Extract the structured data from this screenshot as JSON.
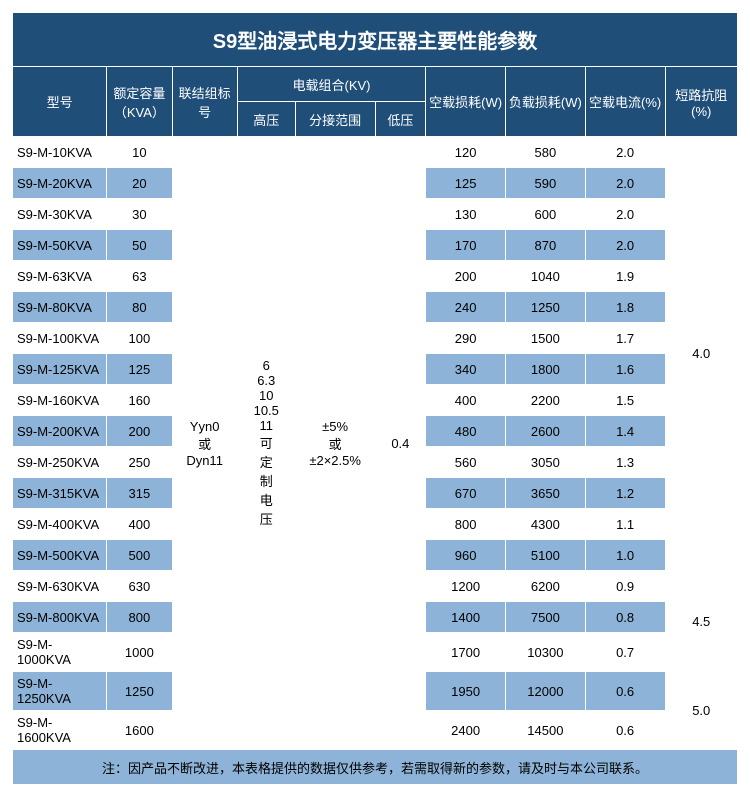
{
  "title": "S9型油浸式电力变压器主要性能参数",
  "headers": {
    "model": "型号",
    "capacity": "额定容量（KVA）",
    "connection": "联结组标号",
    "voltage_group": "电载组合(KV)",
    "hv": "高压",
    "tap": "分接范围",
    "lv": "低压",
    "noload_loss": "空载损耗(W)",
    "load_loss": "负载损耗(W)",
    "noload_current": "空载电流(%)",
    "impedance": "短路抗阻(%)"
  },
  "connection_value": "Yyn0\n或\nDyn11",
  "hv_value": "6\n6.3\n10\n10.5\n11\n可\n定\n制\n电\n压",
  "tap_value": "±5%\n或\n±2×2.5%",
  "lv_value": "0.4",
  "impedance_values": {
    "a": "4.0",
    "b": "4.5",
    "c": "5.0"
  },
  "rows": [
    {
      "model": "S9-M-10KVA",
      "cap": "10",
      "nl": "120",
      "ll": "580",
      "nc": "2.0"
    },
    {
      "model": "S9-M-20KVA",
      "cap": "20",
      "nl": "125",
      "ll": "590",
      "nc": "2.0"
    },
    {
      "model": "S9-M-30KVA",
      "cap": "30",
      "nl": "130",
      "ll": "600",
      "nc": "2.0"
    },
    {
      "model": "S9-M-50KVA",
      "cap": "50",
      "nl": "170",
      "ll": "870",
      "nc": "2.0"
    },
    {
      "model": "S9-M-63KVA",
      "cap": "63",
      "nl": "200",
      "ll": "1040",
      "nc": "1.9"
    },
    {
      "model": "S9-M-80KVA",
      "cap": "80",
      "nl": "240",
      "ll": "1250",
      "nc": "1.8"
    },
    {
      "model": "S9-M-100KVA",
      "cap": "100",
      "nl": "290",
      "ll": "1500",
      "nc": "1.7"
    },
    {
      "model": "S9-M-125KVA",
      "cap": "125",
      "nl": "340",
      "ll": "1800",
      "nc": "1.6"
    },
    {
      "model": "S9-M-160KVA",
      "cap": "160",
      "nl": "400",
      "ll": "2200",
      "nc": "1.5"
    },
    {
      "model": "S9-M-200KVA",
      "cap": "200",
      "nl": "480",
      "ll": "2600",
      "nc": "1.4"
    },
    {
      "model": "S9-M-250KVA",
      "cap": "250",
      "nl": "560",
      "ll": "3050",
      "nc": "1.3"
    },
    {
      "model": "S9-M-315KVA",
      "cap": "315",
      "nl": "670",
      "ll": "3650",
      "nc": "1.2"
    },
    {
      "model": "S9-M-400KVA",
      "cap": "400",
      "nl": "800",
      "ll": "4300",
      "nc": "1.1"
    },
    {
      "model": "S9-M-500KVA",
      "cap": "500",
      "nl": "960",
      "ll": "5100",
      "nc": "1.0"
    },
    {
      "model": "S9-M-630KVA",
      "cap": "630",
      "nl": "1200",
      "ll": "6200",
      "nc": "0.9"
    },
    {
      "model": "S9-M-800KVA",
      "cap": "800",
      "nl": "1400",
      "ll": "7500",
      "nc": "0.8"
    },
    {
      "model": "S9-M-1000KVA",
      "cap": "1000",
      "nl": "1700",
      "ll": "10300",
      "nc": "0.7"
    },
    {
      "model": "S9-M-1250KVA",
      "cap": "1250",
      "nl": "1950",
      "ll": "12000",
      "nc": "0.6"
    },
    {
      "model": "S9-M-1600KVA",
      "cap": "1600",
      "nl": "2400",
      "ll": "14500",
      "nc": "0.6"
    }
  ],
  "footer": "注：因产品不断改进，本表格提供的数据仅供参考，若需取得新的参数，请及时与本公司联系。",
  "colors": {
    "header_bg": "#1f4e79",
    "header_fg": "#ffffff",
    "stripe_bg": "#8db4d8",
    "border": "#ffffff"
  },
  "font_sizes": {
    "title": 20,
    "header": 13,
    "body": 13
  }
}
